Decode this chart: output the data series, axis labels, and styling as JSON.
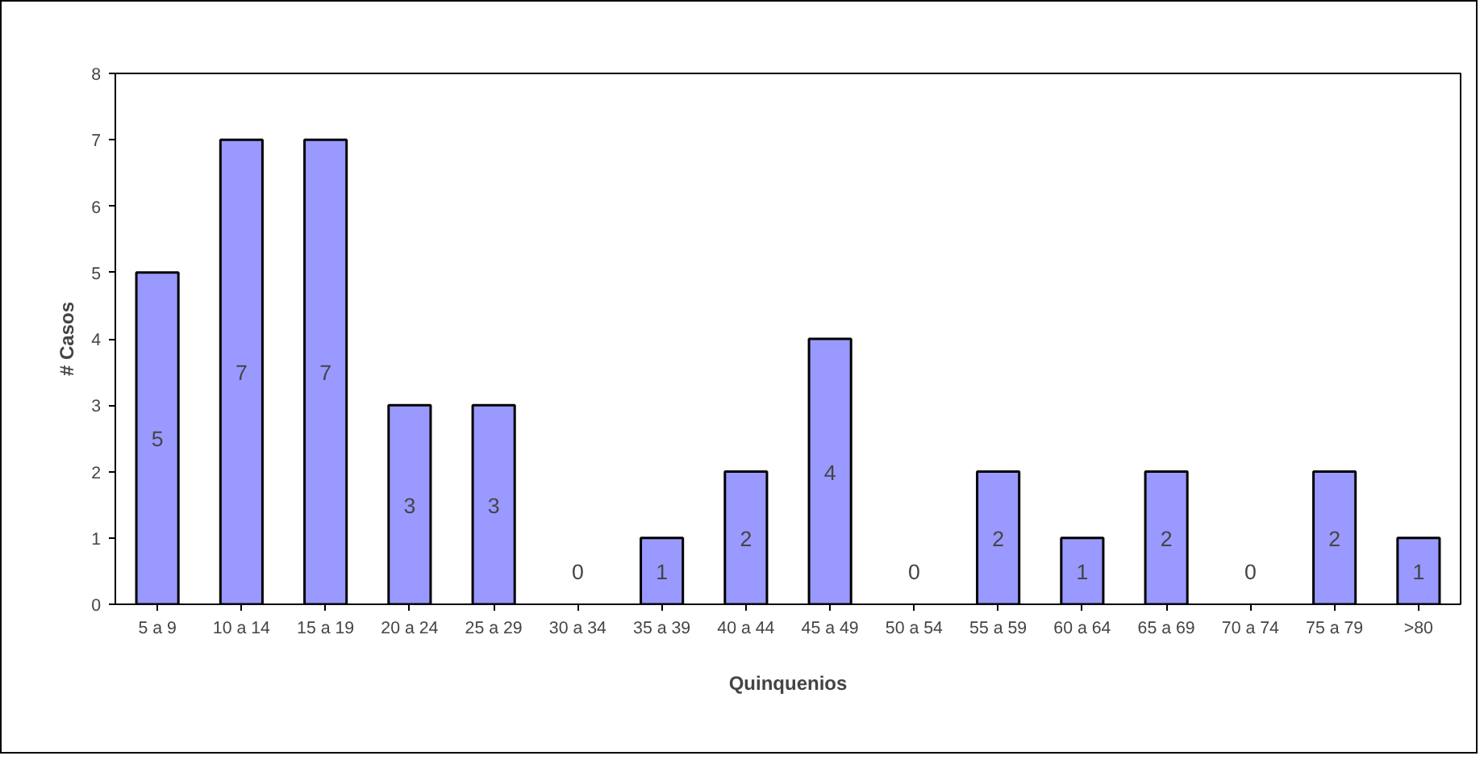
{
  "chart_data": {
    "type": "bar",
    "xlabel": "Quinquenios",
    "ylabel": "# Casos",
    "categories": [
      "5 a 9",
      "10 a 14",
      "15 a 19",
      "20 a 24",
      "25 a 29",
      "30 a 34",
      "35 a 39",
      "40 a 44",
      "45 a 49",
      "50 a 54",
      "55 a 59",
      "60 a 64",
      "65 a 69",
      "70 a 74",
      "75 a 79",
      ">80"
    ],
    "values": [
      5,
      7,
      7,
      3,
      3,
      0,
      1,
      2,
      4,
      0,
      2,
      1,
      2,
      0,
      2,
      1
    ],
    "color": "#9999ff",
    "ylim": [
      0,
      8
    ],
    "yticks": [
      0,
      1,
      2,
      3,
      4,
      5,
      6,
      7,
      8
    ],
    "grid": false,
    "data_labels": true
  }
}
